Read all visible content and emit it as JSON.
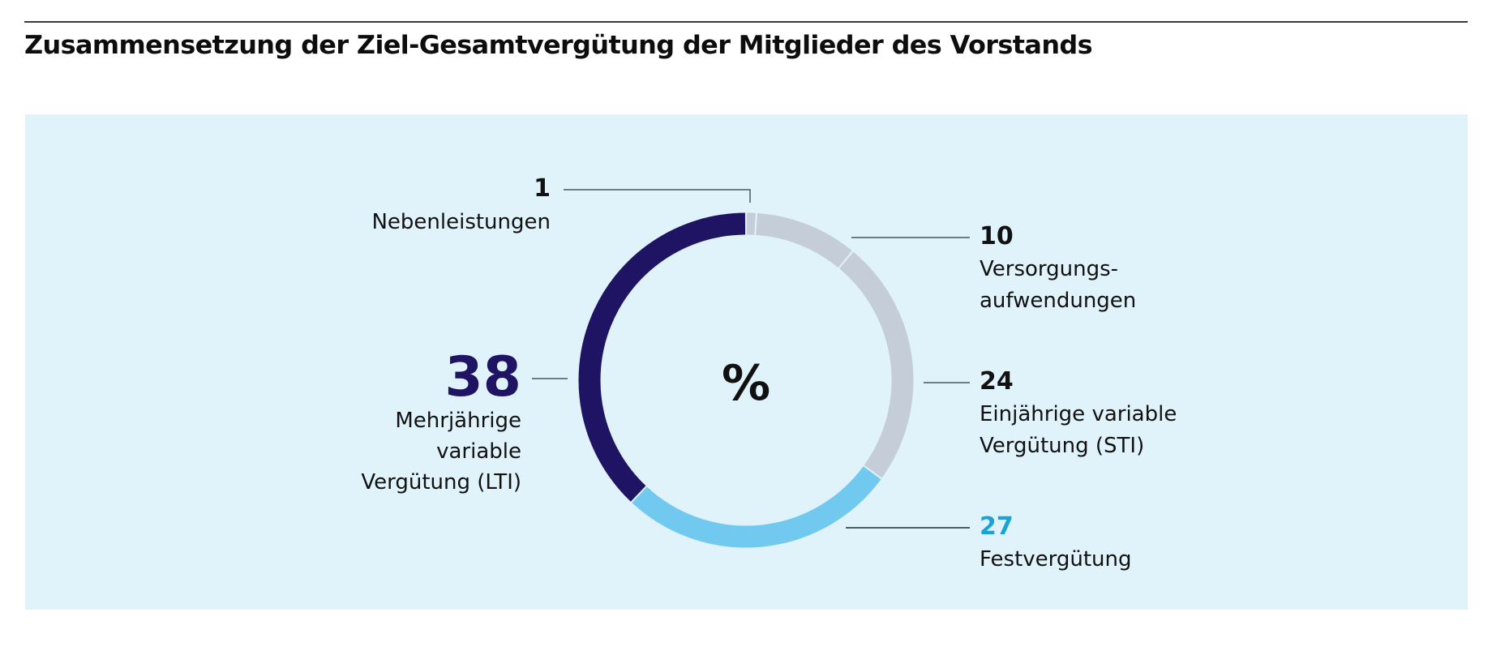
{
  "header": {
    "title": "Zusammensetzung der Ziel-Gesamtvergütung der Mitglieder des Vorstands"
  },
  "colors": {
    "panel_background": "#e0f3fa",
    "navy": "#1f1463",
    "gray": "#c5ced8",
    "light_blue": "#72c9f0",
    "cyan_text": "#1aa3d4",
    "text": "#111111"
  },
  "chart_data": {
    "type": "pie",
    "variant": "donut",
    "title": "Zusammensetzung der Ziel-Gesamtvergütung der Mitglieder des Vorstands",
    "center_label": "%",
    "unit": "%",
    "start": "top",
    "direction": "clockwise",
    "slices": [
      {
        "label": "Nebenleistungen",
        "label_lines": [
          "Nebenleistungen"
        ],
        "value": 1,
        "color": "#c5ced8",
        "value_color": "#111111",
        "side": "left-top"
      },
      {
        "label": "Versorgungsaufwendungen",
        "label_lines": [
          "Versorgungs-",
          "aufwendungen"
        ],
        "value": 10,
        "color": "#c5ced8",
        "value_color": "#111111",
        "side": "right"
      },
      {
        "label": "Einjährige variable Vergütung (STI)",
        "label_lines": [
          "Einjährige variable",
          "Vergütung (STI)"
        ],
        "value": 24,
        "color": "#c5ced8",
        "value_color": "#111111",
        "side": "right"
      },
      {
        "label": "Festvergütung",
        "label_lines": [
          "Festvergütung"
        ],
        "value": 27,
        "color": "#72c9f0",
        "value_color": "#1aa3d4",
        "side": "right"
      },
      {
        "label": "Mehrjährige variable Vergütung (LTI)",
        "label_lines": [
          "Mehrjährige",
          "variable",
          "Vergütung (LTI)"
        ],
        "value": 38,
        "color": "#1f1463",
        "value_color": "#1f1463",
        "side": "left"
      }
    ]
  }
}
